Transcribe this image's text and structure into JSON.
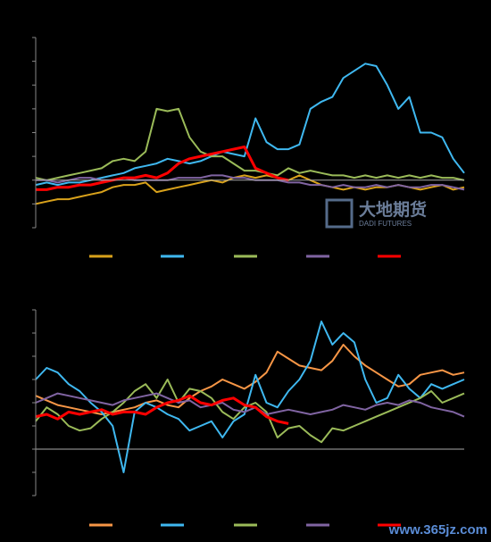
{
  "chart_data": [
    {
      "type": "line",
      "categories": [
        null,
        null,
        null,
        null,
        null,
        null,
        null,
        null,
        null,
        null,
        null,
        null,
        null,
        null,
        null,
        null,
        null,
        null,
        null,
        null,
        null,
        null,
        null,
        null,
        null,
        null,
        null,
        null,
        null,
        null,
        null,
        null,
        null,
        null,
        null,
        null,
        null,
        null,
        null,
        null
      ],
      "ylim": [
        -2,
        6
      ],
      "yticks": [
        -2,
        -1,
        0,
        1,
        2,
        3,
        4,
        5,
        6
      ],
      "series": [
        {
          "color": "#d9a21b",
          "values": [
            -1,
            -0.9,
            -0.8,
            -0.8,
            -0.7,
            -0.6,
            -0.5,
            -0.3,
            -0.2,
            -0.2,
            -0.1,
            -0.5,
            -0.4,
            -0.3,
            -0.2,
            -0.1,
            0,
            -0.1,
            0.1,
            0.2,
            0.1,
            0.2,
            0.1,
            0,
            0.2,
            0,
            -0.2,
            -0.3,
            -0.4,
            -0.3,
            -0.4,
            -0.3,
            -0.3,
            -0.2,
            -0.3,
            -0.4,
            -0.3,
            -0.2,
            -0.4,
            -0.3
          ]
        },
        {
          "color": "#3fb8f0",
          "values": [
            -0.2,
            -0.1,
            -0.2,
            -0.1,
            -0.1,
            0,
            0.1,
            0.2,
            0.3,
            0.5,
            0.6,
            0.7,
            0.9,
            0.8,
            0.7,
            0.8,
            1.0,
            1.2,
            1.1,
            1.0,
            2.6,
            1.6,
            1.3,
            1.3,
            1.5,
            3.0,
            3.3,
            3.5,
            4.3,
            4.6,
            4.9,
            4.8,
            4.0,
            3.0,
            3.5,
            2.0,
            2.0,
            1.8,
            0.9,
            0.3
          ]
        },
        {
          "color": "#9bbb59",
          "values": [
            0.1,
            0,
            0.1,
            0.2,
            0.3,
            0.4,
            0.5,
            0.8,
            0.9,
            0.8,
            1.2,
            3.0,
            2.9,
            3.0,
            1.8,
            1.2,
            1.0,
            1.0,
            0.7,
            0.4,
            0.4,
            0.3,
            0.2,
            0.5,
            0.3,
            0.4,
            0.3,
            0.2,
            0.2,
            0.1,
            0.2,
            0.1,
            0.2,
            0.1,
            0.2,
            0.1,
            0.2,
            0.1,
            0.1,
            0
          ]
        },
        {
          "color": "#8064a2",
          "values": [
            0,
            0,
            -0.1,
            0,
            0.1,
            0.1,
            0,
            0,
            0.1,
            0,
            0,
            0,
            0,
            0.1,
            0.1,
            0.1,
            0.2,
            0.2,
            0.1,
            0.1,
            0,
            0,
            0,
            -0.1,
            -0.1,
            -0.2,
            -0.2,
            -0.3,
            -0.2,
            -0.3,
            -0.3,
            -0.2,
            -0.3,
            -0.2,
            -0.3,
            -0.3,
            -0.2,
            -0.2,
            -0.3,
            -0.4
          ]
        },
        {
          "color": "#ff0000",
          "values": [
            -0.4,
            -0.4,
            -0.3,
            -0.3,
            -0.2,
            -0.2,
            -0.1,
            0,
            0.1,
            0.1,
            0.2,
            0.1,
            0.3,
            0.7,
            0.9,
            1.0,
            1.1,
            1.2,
            1.3,
            1.4,
            0.5,
            0.3,
            0.1,
            0,
            null,
            null,
            null,
            null,
            null,
            null,
            null,
            null,
            null,
            null,
            null,
            null,
            null,
            null,
            null,
            null
          ]
        }
      ]
    },
    {
      "type": "line",
      "categories": [
        null,
        null,
        null,
        null,
        null,
        null,
        null,
        null,
        null,
        null,
        null,
        null,
        null,
        null,
        null,
        null,
        null,
        null,
        null,
        null,
        null,
        null,
        null,
        null,
        null,
        null,
        null,
        null,
        null,
        null,
        null,
        null,
        null,
        null,
        null,
        null,
        null,
        null,
        null,
        null
      ],
      "ylim": [
        -2,
        6
      ],
      "yticks": [
        -2,
        -1,
        0,
        1,
        2,
        3,
        4,
        5,
        6
      ],
      "series": [
        {
          "color": "#f79646",
          "values": [
            2.3,
            2.1,
            1.9,
            1.8,
            1.7,
            1.6,
            1.5,
            1.6,
            1.7,
            1.8,
            2.0,
            2.1,
            1.9,
            1.8,
            2.2,
            2.5,
            2.7,
            3.0,
            2.8,
            2.6,
            2.9,
            3.3,
            4.2,
            3.9,
            3.6,
            3.5,
            3.4,
            3.8,
            4.5,
            4.0,
            3.6,
            3.3,
            3.0,
            2.7,
            2.8,
            3.2,
            3.3,
            3.4,
            3.2,
            3.3
          ]
        },
        {
          "color": "#3fb8f0",
          "values": [
            3.0,
            3.5,
            3.3,
            2.8,
            2.5,
            2.0,
            1.6,
            1.0,
            -1.0,
            1.6,
            2.0,
            1.8,
            1.5,
            1.3,
            0.8,
            1.0,
            1.2,
            0.5,
            1.2,
            1.5,
            3.2,
            2.0,
            1.8,
            2.5,
            3.0,
            3.8,
            5.5,
            4.5,
            5.0,
            4.6,
            3.0,
            2.0,
            2.2,
            3.2,
            2.6,
            2.2,
            2.8,
            2.6,
            2.8,
            3.0
          ]
        },
        {
          "color": "#9bbb59",
          "values": [
            1.2,
            1.8,
            1.5,
            1.0,
            0.8,
            0.9,
            1.3,
            1.6,
            2.0,
            2.5,
            2.8,
            2.2,
            3.0,
            2.0,
            2.6,
            2.5,
            2.2,
            1.6,
            1.3,
            1.8,
            2.0,
            1.6,
            0.5,
            0.9,
            1.0,
            0.6,
            0.3,
            0.9,
            0.8,
            1.0,
            1.2,
            1.4,
            1.6,
            1.8,
            2.0,
            2.2,
            2.5,
            2.0,
            2.2,
            2.4
          ]
        },
        {
          "color": "#8064a2",
          "values": [
            2.0,
            2.2,
            2.4,
            2.3,
            2.2,
            2.1,
            2.0,
            1.9,
            2.1,
            2.2,
            2.3,
            2.4,
            2.2,
            2.0,
            2.1,
            1.8,
            1.9,
            2.0,
            1.7,
            1.6,
            1.8,
            1.5,
            1.6,
            1.7,
            1.6,
            1.5,
            1.6,
            1.7,
            1.9,
            1.8,
            1.7,
            1.9,
            2.0,
            1.9,
            2.1,
            2.0,
            1.8,
            1.7,
            1.6,
            1.4
          ]
        },
        {
          "color": "#ff0000",
          "values": [
            1.4,
            1.5,
            1.3,
            1.6,
            1.5,
            1.6,
            1.7,
            1.5,
            1.6,
            1.6,
            1.5,
            1.8,
            2.0,
            2.1,
            2.3,
            2.0,
            1.9,
            2.1,
            2.2,
            1.9,
            1.8,
            1.4,
            1.2,
            1.1,
            null,
            null,
            null,
            null,
            null,
            null,
            null,
            null,
            null,
            null,
            null,
            null,
            null,
            null,
            null,
            null
          ]
        }
      ]
    }
  ],
  "watermark": {
    "logo_text": "大地期货",
    "logo_subtext": "DADI FUTURES",
    "site": "www.365jz.com"
  }
}
